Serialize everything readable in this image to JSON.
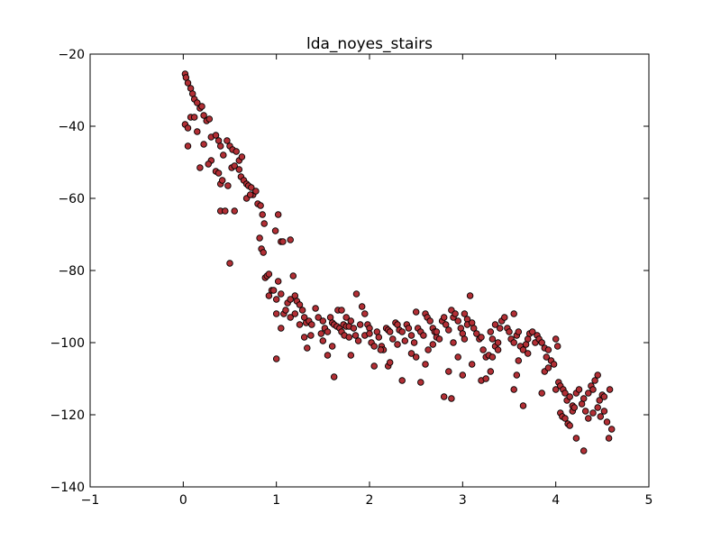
{
  "chart_data": {
    "type": "scatter",
    "title": "lda_noyes_stairs",
    "xlabel": "",
    "ylabel": "",
    "xlim": [
      -1,
      5
    ],
    "ylim": [
      -140,
      -20
    ],
    "xticks": [
      -1,
      0,
      1,
      2,
      3,
      4,
      5
    ],
    "yticks": [
      -140,
      -120,
      -100,
      -80,
      -60,
      -40,
      -20
    ],
    "xtick_labels": [
      "−1",
      "0",
      "1",
      "2",
      "3",
      "4",
      "5"
    ],
    "ytick_labels": [
      "−140",
      "−120",
      "−100",
      "−80",
      "−60",
      "−40",
      "−20"
    ],
    "grid": false,
    "marker_color": "#b22f35",
    "marker_edge_color": "#000000",
    "series": [
      {
        "points": [
          [
            0.02,
            -25.5
          ],
          [
            0.03,
            -26.5
          ],
          [
            0.05,
            -28
          ],
          [
            0.08,
            -29.5
          ],
          [
            0.1,
            -31
          ],
          [
            0.12,
            -32.5
          ],
          [
            0.15,
            -33.5
          ],
          [
            0.18,
            -35
          ],
          [
            0.2,
            -34.5
          ],
          [
            0.22,
            -37
          ],
          [
            0.02,
            -39.5
          ],
          [
            0.05,
            -40.5
          ],
          [
            0.08,
            -37.5
          ],
          [
            0.12,
            -37.5
          ],
          [
            0.15,
            -41.5
          ],
          [
            0.25,
            -38.5
          ],
          [
            0.28,
            -38
          ],
          [
            0.3,
            -43
          ],
          [
            0.22,
            -45
          ],
          [
            0.05,
            -45.5
          ],
          [
            0.35,
            -42.5
          ],
          [
            0.38,
            -44
          ],
          [
            0.4,
            -45.5
          ],
          [
            0.43,
            -48
          ],
          [
            0.47,
            -44
          ],
          [
            0.5,
            -45.5
          ],
          [
            0.53,
            -46.5
          ],
          [
            0.57,
            -47
          ],
          [
            0.6,
            -49.5
          ],
          [
            0.63,
            -48.5
          ],
          [
            0.3,
            -49.5
          ],
          [
            0.27,
            -50.5
          ],
          [
            0.18,
            -51.5
          ],
          [
            0.35,
            -52.5
          ],
          [
            0.38,
            -53
          ],
          [
            0.4,
            -56
          ],
          [
            0.42,
            -55
          ],
          [
            0.48,
            -56.5
          ],
          [
            0.52,
            -51.5
          ],
          [
            0.55,
            -51
          ],
          [
            0.6,
            -52
          ],
          [
            0.62,
            -54
          ],
          [
            0.65,
            -55
          ],
          [
            0.68,
            -56
          ],
          [
            0.7,
            -56.5
          ],
          [
            0.73,
            -57
          ],
          [
            0.75,
            -59
          ],
          [
            0.78,
            -58
          ],
          [
            0.8,
            -61.5
          ],
          [
            0.83,
            -62
          ],
          [
            0.4,
            -63.5
          ],
          [
            0.45,
            -63.5
          ],
          [
            0.55,
            -63.5
          ],
          [
            0.68,
            -60
          ],
          [
            0.72,
            -59
          ],
          [
            0.85,
            -64.5
          ],
          [
            0.87,
            -67
          ],
          [
            0.82,
            -71
          ],
          [
            0.84,
            -74
          ],
          [
            0.86,
            -75
          ],
          [
            0.88,
            -82
          ],
          [
            0.9,
            -81.5
          ],
          [
            0.92,
            -81
          ],
          [
            0.95,
            -85.5
          ],
          [
            0.97,
            -85.5
          ],
          [
            0.99,
            -69
          ],
          [
            1.02,
            -64.5
          ],
          [
            1.05,
            -72
          ],
          [
            1.07,
            -72
          ],
          [
            1.15,
            -71.5
          ],
          [
            0.92,
            -87
          ],
          [
            1.0,
            -88
          ],
          [
            1.02,
            -83
          ],
          [
            1.05,
            -86.5
          ],
          [
            1.08,
            -92
          ],
          [
            1.12,
            -89
          ],
          [
            1.15,
            -88
          ],
          [
            1.18,
            -81.5
          ],
          [
            1.2,
            -87
          ],
          [
            1.22,
            -88.5
          ],
          [
            0.5,
            -78
          ],
          [
            1.0,
            -92
          ],
          [
            1.05,
            -96
          ],
          [
            1.0,
            -104.5
          ],
          [
            1.25,
            -89.5
          ],
          [
            1.28,
            -91
          ],
          [
            1.3,
            -93
          ],
          [
            1.32,
            -94.5
          ],
          [
            1.35,
            -94
          ],
          [
            1.38,
            -95
          ],
          [
            1.1,
            -91
          ],
          [
            1.15,
            -93
          ],
          [
            1.2,
            -92
          ],
          [
            1.25,
            -95
          ],
          [
            1.3,
            -98.5
          ],
          [
            1.33,
            -101.5
          ],
          [
            1.37,
            -98
          ],
          [
            1.42,
            -90.5
          ],
          [
            1.45,
            -93
          ],
          [
            1.5,
            -94
          ],
          [
            1.52,
            -96
          ],
          [
            1.55,
            -97
          ],
          [
            1.58,
            -93
          ],
          [
            1.6,
            -94.5
          ],
          [
            1.62,
            -95
          ],
          [
            1.65,
            -95.5
          ],
          [
            1.68,
            -96
          ],
          [
            1.7,
            -97
          ],
          [
            1.72,
            -95
          ],
          [
            1.75,
            -93
          ],
          [
            1.48,
            -97.5
          ],
          [
            1.5,
            -99.5
          ],
          [
            1.55,
            -103.5
          ],
          [
            1.6,
            -101
          ],
          [
            1.62,
            -109.5
          ],
          [
            1.66,
            -91
          ],
          [
            1.7,
            -91
          ],
          [
            1.75,
            -95.5
          ],
          [
            1.78,
            -95.5
          ],
          [
            1.8,
            -94
          ],
          [
            1.83,
            -96
          ],
          [
            1.85,
            -98
          ],
          [
            1.88,
            -99.5
          ],
          [
            1.9,
            -95
          ],
          [
            1.92,
            -90
          ],
          [
            1.95,
            -92
          ],
          [
            1.98,
            -95
          ],
          [
            2.0,
            -96
          ],
          [
            2.02,
            -100
          ],
          [
            2.05,
            -101
          ],
          [
            1.73,
            -98
          ],
          [
            1.78,
            -98.5
          ],
          [
            1.8,
            -103.5
          ],
          [
            1.86,
            -86.5
          ],
          [
            1.95,
            -98
          ],
          [
            2.0,
            -97.5
          ],
          [
            2.05,
            -106.5
          ],
          [
            2.08,
            -97
          ],
          [
            2.1,
            -98.5
          ],
          [
            2.13,
            -101
          ],
          [
            2.15,
            -102
          ],
          [
            2.18,
            -96
          ],
          [
            2.2,
            -96.5
          ],
          [
            2.22,
            -97
          ],
          [
            2.25,
            -99
          ],
          [
            2.28,
            -94.5
          ],
          [
            2.3,
            -95
          ],
          [
            2.32,
            -96.5
          ],
          [
            2.35,
            -97
          ],
          [
            2.38,
            -99.5
          ],
          [
            2.12,
            -102
          ],
          [
            2.2,
            -106.5
          ],
          [
            2.22,
            -105.5
          ],
          [
            2.3,
            -100.5
          ],
          [
            2.35,
            -110.5
          ],
          [
            2.4,
            -95
          ],
          [
            2.42,
            -96
          ],
          [
            2.45,
            -98
          ],
          [
            2.48,
            -100
          ],
          [
            2.5,
            -91.5
          ],
          [
            2.52,
            -96
          ],
          [
            2.55,
            -97
          ],
          [
            2.58,
            -98
          ],
          [
            2.6,
            -92
          ],
          [
            2.62,
            -93
          ],
          [
            2.65,
            -94
          ],
          [
            2.68,
            -96
          ],
          [
            2.7,
            -97
          ],
          [
            2.72,
            -98.5
          ],
          [
            2.75,
            -99
          ],
          [
            2.45,
            -103
          ],
          [
            2.5,
            -104
          ],
          [
            2.55,
            -111
          ],
          [
            2.6,
            -106
          ],
          [
            2.63,
            -102
          ],
          [
            2.68,
            -100.5
          ],
          [
            2.72,
            -97
          ],
          [
            2.78,
            -94
          ],
          [
            2.8,
            -93
          ],
          [
            2.82,
            -95
          ],
          [
            2.85,
            -96.5
          ],
          [
            2.88,
            -91
          ],
          [
            2.9,
            -93
          ],
          [
            2.92,
            -92
          ],
          [
            2.95,
            -94
          ],
          [
            2.98,
            -96
          ],
          [
            3.0,
            -97.5
          ],
          [
            3.02,
            -99
          ],
          [
            3.05,
            -93.5
          ],
          [
            3.08,
            -87
          ],
          [
            2.8,
            -115
          ],
          [
            2.88,
            -115.5
          ],
          [
            2.85,
            -108
          ],
          [
            2.9,
            -100
          ],
          [
            2.95,
            -104
          ],
          [
            3.0,
            -109
          ],
          [
            3.02,
            -92
          ],
          [
            3.05,
            -95
          ],
          [
            3.1,
            -94.5
          ],
          [
            3.12,
            -96
          ],
          [
            3.15,
            -97.5
          ],
          [
            3.18,
            -99
          ],
          [
            3.2,
            -98.5
          ],
          [
            3.22,
            -102
          ],
          [
            3.25,
            -104
          ],
          [
            3.28,
            -103.5
          ],
          [
            3.3,
            -97
          ],
          [
            3.32,
            -99
          ],
          [
            3.35,
            -101
          ],
          [
            3.38,
            -100
          ],
          [
            3.1,
            -106
          ],
          [
            3.2,
            -110.5
          ],
          [
            3.25,
            -110
          ],
          [
            3.3,
            -108
          ],
          [
            3.32,
            -104
          ],
          [
            3.35,
            -95
          ],
          [
            3.4,
            -96
          ],
          [
            3.42,
            -94
          ],
          [
            3.45,
            -93
          ],
          [
            3.48,
            -96
          ],
          [
            3.5,
            -97
          ],
          [
            3.52,
            -99
          ],
          [
            3.55,
            -100
          ],
          [
            3.58,
            -98
          ],
          [
            3.6,
            -97
          ],
          [
            3.62,
            -101
          ],
          [
            3.65,
            -102
          ],
          [
            3.68,
            -100.5
          ],
          [
            3.7,
            -99
          ],
          [
            3.72,
            -97.5
          ],
          [
            3.38,
            -102
          ],
          [
            3.55,
            -92
          ],
          [
            3.55,
            -113
          ],
          [
            3.58,
            -109
          ],
          [
            3.6,
            -105
          ],
          [
            3.65,
            -117.5
          ],
          [
            3.7,
            -103
          ],
          [
            3.75,
            -97
          ],
          [
            3.78,
            -100
          ],
          [
            3.8,
            -98
          ],
          [
            3.82,
            -99
          ],
          [
            3.85,
            -100
          ],
          [
            3.88,
            -101.5
          ],
          [
            3.9,
            -104
          ],
          [
            3.92,
            -102
          ],
          [
            3.95,
            -105
          ],
          [
            3.98,
            -106
          ],
          [
            4.0,
            -99
          ],
          [
            4.02,
            -101
          ],
          [
            4.03,
            -111
          ],
          [
            3.85,
            -114
          ],
          [
            3.88,
            -108
          ],
          [
            3.92,
            -107
          ],
          [
            4.0,
            -113
          ],
          [
            4.05,
            -112
          ],
          [
            4.08,
            -113
          ],
          [
            4.1,
            -114
          ],
          [
            4.12,
            -116
          ],
          [
            4.15,
            -115
          ],
          [
            4.18,
            -117.5
          ],
          [
            4.05,
            -119.5
          ],
          [
            4.07,
            -120.5
          ],
          [
            4.1,
            -121
          ],
          [
            4.13,
            -122.5
          ],
          [
            4.15,
            -123
          ],
          [
            4.18,
            -119
          ],
          [
            4.2,
            -118
          ],
          [
            4.22,
            -114
          ],
          [
            4.25,
            -113
          ],
          [
            4.28,
            -117
          ],
          [
            4.3,
            -115.5
          ],
          [
            4.32,
            -119
          ],
          [
            4.35,
            -114
          ],
          [
            4.38,
            -112
          ],
          [
            4.4,
            -113
          ],
          [
            4.42,
            -110.5
          ],
          [
            4.45,
            -109
          ],
          [
            4.47,
            -116
          ],
          [
            4.5,
            -114.5
          ],
          [
            4.52,
            -115
          ],
          [
            4.22,
            -126.5
          ],
          [
            4.3,
            -130
          ],
          [
            4.35,
            -121
          ],
          [
            4.4,
            -119.5
          ],
          [
            4.45,
            -118
          ],
          [
            4.48,
            -120.5
          ],
          [
            4.52,
            -119
          ],
          [
            4.55,
            -122
          ],
          [
            4.57,
            -126.5
          ],
          [
            4.6,
            -124
          ],
          [
            4.58,
            -113
          ]
        ]
      }
    ]
  }
}
